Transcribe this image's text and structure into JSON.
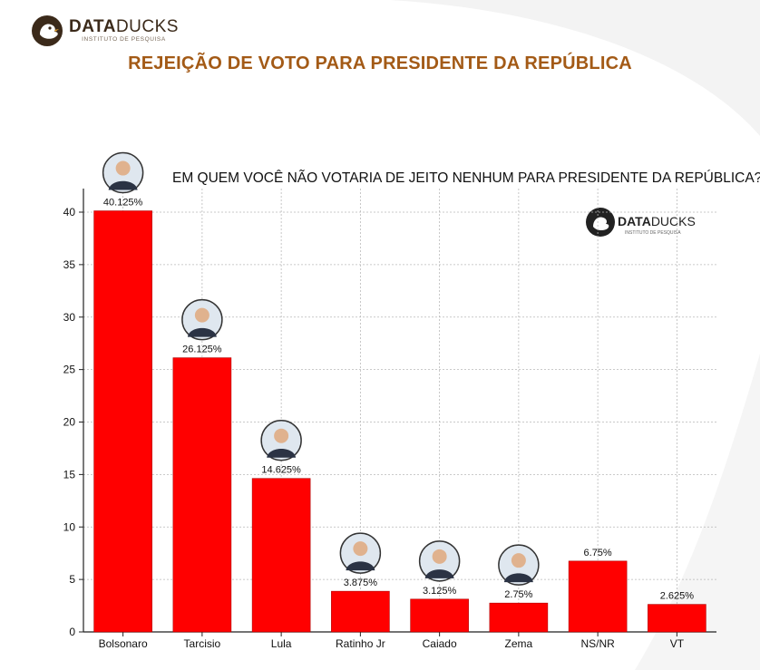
{
  "brand": {
    "name_bold": "DATA",
    "name_light": "DUCKS",
    "tagline": "INSTITUTO DE PESQUISA"
  },
  "page_title": "REJEIÇÃO DE VOTO PARA PRESIDENTE DA REPÚBLICA",
  "colors": {
    "bar": "#ff0000",
    "title": "#a35a16",
    "grid": "#b8b8b8"
  },
  "chart_data": {
    "type": "bar",
    "title": "EM QUEM VOCÊ NÃO VOTARIA DE JEITO NENHUM PARA PRESIDENTE DA REPÚBLICA?",
    "categories": [
      "Bolsonaro",
      "Tarcisio",
      "Lula",
      "Ratinho Jr",
      "Caiado",
      "Zema",
      "NS/NR",
      "VT"
    ],
    "values": [
      40.125,
      26.125,
      14.625,
      3.875,
      3.125,
      2.75,
      6.75,
      2.625
    ],
    "data_labels": [
      "40.125%",
      "26.125%",
      "14.625%",
      "3.875%",
      "3.125%",
      "2.75%",
      "6.75%",
      "2.625%"
    ],
    "yticks": [
      "0",
      "5",
      "10",
      "15",
      "20",
      "25",
      "30",
      "35",
      "40"
    ],
    "ylim": [
      0,
      40
    ],
    "xlabel": "",
    "ylabel": "",
    "grid": true,
    "has_candidate_photos": [
      true,
      true,
      true,
      true,
      true,
      true,
      false,
      false
    ],
    "watermark": {
      "name_bold": "DATA",
      "name_light": "DUCKS",
      "tagline": "INSTITUTO DE PESQUISA"
    }
  }
}
